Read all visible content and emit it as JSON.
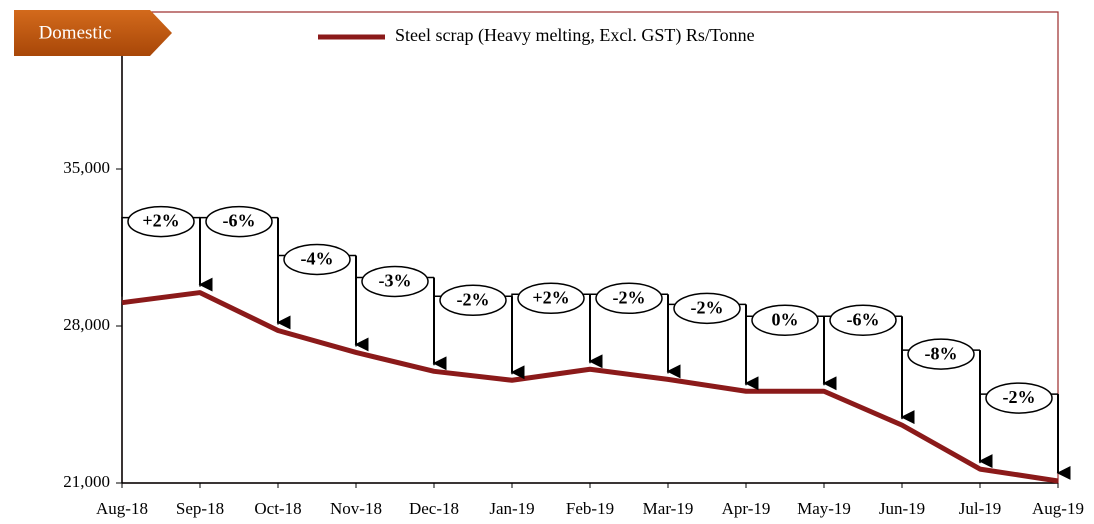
{
  "chart_data": {
    "type": "line",
    "tag": "Domestic",
    "categories": [
      "Aug-18",
      "Sep-18",
      "Oct-18",
      "Nov-18",
      "Dec-18",
      "Jan-19",
      "Feb-19",
      "Mar-19",
      "Apr-19",
      "May-19",
      "Jun-19",
      "Jul-19",
      "Aug-19"
    ],
    "series": [
      {
        "name": "Steel scrap (Heavy melting, Excl. GST) Rs/Tonne",
        "color": "#8b1a1a",
        "values": [
          29040,
          29490,
          27800,
          26820,
          25980,
          25580,
          26070,
          25620,
          25090,
          25090,
          23580,
          21620,
          21090
        ]
      }
    ],
    "annotations": [
      "+2%",
      "-6%",
      "-4%",
      "-3%",
      "-2%",
      "+2%",
      "-2%",
      "-2%",
      "0%",
      "-6%",
      "-8%",
      "-2%"
    ],
    "ylim": [
      21000,
      42000
    ],
    "yticks": [
      {
        "value": 21000,
        "label": "21,000"
      },
      {
        "value": 28000,
        "label": "28,000"
      },
      {
        "value": 35000,
        "label": "35,000"
      }
    ]
  }
}
